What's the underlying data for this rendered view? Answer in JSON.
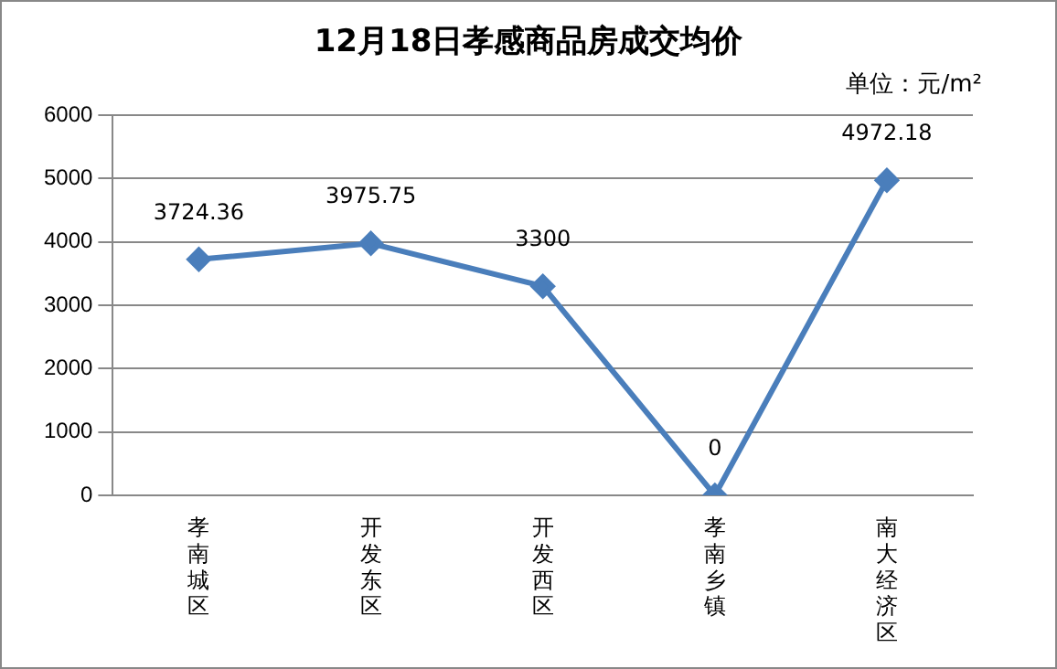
{
  "chart_data": {
    "type": "line",
    "title": "12月18日孝感商品房成交均价",
    "annotations": [
      "单位：元/m²"
    ],
    "categories": [
      "孝南城区",
      "开发东区",
      "开发西区",
      "孝南乡镇",
      "南大经济区"
    ],
    "series": [
      {
        "color": "#4a7ebb",
        "values": [
          3724.36,
          3975.75,
          3300,
          0,
          4972.18
        ]
      }
    ],
    "ylim": [
      0,
      6000
    ],
    "yticks": [
      0,
      1000,
      2000,
      3000,
      4000,
      5000,
      6000
    ],
    "grid": "y",
    "legend": false,
    "marker": "diamond",
    "line_style": "solid",
    "data_labels": true
  }
}
